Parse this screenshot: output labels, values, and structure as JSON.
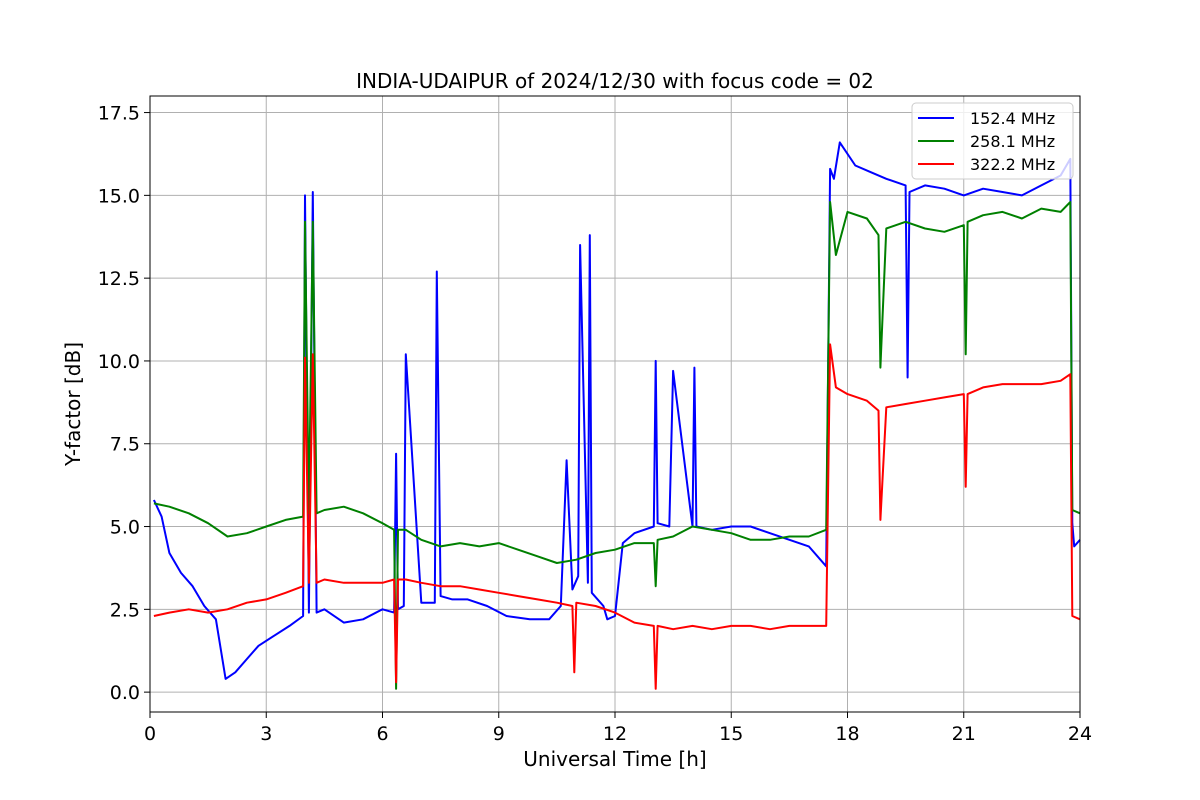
{
  "chart_data": {
    "type": "line",
    "title": "INDIA-UDAIPUR of 2024/12/30 with focus code = 02",
    "xlabel": "Universal Time [h]",
    "ylabel": "Y-factor [dB]",
    "xlim": [
      0,
      24
    ],
    "ylim": [
      -0.6,
      18.0
    ],
    "xticks": [
      0,
      3,
      6,
      9,
      12,
      15,
      18,
      21,
      24
    ],
    "xtick_labels": [
      "0",
      "3",
      "6",
      "9",
      "12",
      "15",
      "18",
      "21",
      "24"
    ],
    "yticks": [
      0.0,
      2.5,
      5.0,
      7.5,
      10.0,
      12.5,
      15.0,
      17.5
    ],
    "ytick_labels": [
      "0.0",
      "2.5",
      "5.0",
      "7.5",
      "10.0",
      "12.5",
      "15.0",
      "17.5"
    ],
    "grid": true,
    "legend_position": "top-right",
    "series": [
      {
        "name": "152.4 MHz",
        "color": "#0000ff",
        "x": [
          0.1,
          0.3,
          0.5,
          0.8,
          1.1,
          1.4,
          1.7,
          1.95,
          2.2,
          2.5,
          2.8,
          3.2,
          3.6,
          3.95,
          4.0,
          4.1,
          4.2,
          4.3,
          4.5,
          5.0,
          5.5,
          6.0,
          6.3,
          6.35,
          6.4,
          6.55,
          6.6,
          7.0,
          7.35,
          7.4,
          7.5,
          7.8,
          8.2,
          8.7,
          9.2,
          9.8,
          10.3,
          10.6,
          10.75,
          10.9,
          11.05,
          11.1,
          11.3,
          11.35,
          11.4,
          11.7,
          11.8,
          12.0,
          12.2,
          12.5,
          13.0,
          13.05,
          13.1,
          13.4,
          13.5,
          14.0,
          14.05,
          14.1,
          14.5,
          15.0,
          15.5,
          16.0,
          16.5,
          17.0,
          17.45,
          17.55,
          17.65,
          17.8,
          18.2,
          18.6,
          19.0,
          19.5,
          19.55,
          19.6,
          20.0,
          20.5,
          21.0,
          21.5,
          22.0,
          22.5,
          23.0,
          23.5,
          23.75,
          23.8,
          23.85,
          24.0
        ],
        "y": [
          5.8,
          5.3,
          4.2,
          3.6,
          3.2,
          2.6,
          2.2,
          0.4,
          0.6,
          1.0,
          1.4,
          1.7,
          2.0,
          2.3,
          15.0,
          2.4,
          15.1,
          2.4,
          2.5,
          2.1,
          2.2,
          2.5,
          2.4,
          7.2,
          2.5,
          2.6,
          10.2,
          2.7,
          2.7,
          12.7,
          2.9,
          2.8,
          2.8,
          2.6,
          2.3,
          2.2,
          2.2,
          2.6,
          7.0,
          3.1,
          3.5,
          13.5,
          3.3,
          13.8,
          3.0,
          2.6,
          2.2,
          2.3,
          4.5,
          4.8,
          5.0,
          10.0,
          5.1,
          5.0,
          9.7,
          5.0,
          9.8,
          5.0,
          4.9,
          5.0,
          5.0,
          4.8,
          4.6,
          4.4,
          3.8,
          15.8,
          15.5,
          16.6,
          15.9,
          15.7,
          15.5,
          15.3,
          9.5,
          15.1,
          15.3,
          15.2,
          15.0,
          15.2,
          15.1,
          15.0,
          15.3,
          15.6,
          16.1,
          5.1,
          4.4,
          4.6
        ]
      },
      {
        "name": "258.1 MHz",
        "color": "#008000",
        "x": [
          0.1,
          0.5,
          1.0,
          1.5,
          2.0,
          2.5,
          3.0,
          3.5,
          3.95,
          4.0,
          4.1,
          4.2,
          4.3,
          4.5,
          5.0,
          5.5,
          6.0,
          6.3,
          6.35,
          6.4,
          6.6,
          7.0,
          7.5,
          8.0,
          8.5,
          9.0,
          9.5,
          10.0,
          10.5,
          11.0,
          11.5,
          12.0,
          12.5,
          13.0,
          13.05,
          13.1,
          13.5,
          14.0,
          14.5,
          15.0,
          15.5,
          16.0,
          16.5,
          17.0,
          17.45,
          17.55,
          17.7,
          18.0,
          18.5,
          18.8,
          18.85,
          19.0,
          19.5,
          20.0,
          20.5,
          21.0,
          21.05,
          21.1,
          21.5,
          22.0,
          22.5,
          23.0,
          23.5,
          23.75,
          23.8,
          24.0
        ],
        "y": [
          5.7,
          5.6,
          5.4,
          5.1,
          4.7,
          4.8,
          5.0,
          5.2,
          5.3,
          14.2,
          5.4,
          14.2,
          5.4,
          5.5,
          5.6,
          5.4,
          5.1,
          4.9,
          0.1,
          4.9,
          4.9,
          4.6,
          4.4,
          4.5,
          4.4,
          4.5,
          4.3,
          4.1,
          3.9,
          4.0,
          4.2,
          4.3,
          4.5,
          4.5,
          3.2,
          4.6,
          4.7,
          5.0,
          4.9,
          4.8,
          4.6,
          4.6,
          4.7,
          4.7,
          4.9,
          14.8,
          13.2,
          14.5,
          14.3,
          13.8,
          9.8,
          14.0,
          14.2,
          14.0,
          13.9,
          14.1,
          10.2,
          14.2,
          14.4,
          14.5,
          14.3,
          14.6,
          14.5,
          14.8,
          5.5,
          5.4
        ]
      },
      {
        "name": "322.2 MHz",
        "color": "#ff0000",
        "x": [
          0.1,
          0.5,
          1.0,
          1.5,
          2.0,
          2.5,
          3.0,
          3.5,
          3.95,
          4.0,
          4.1,
          4.2,
          4.3,
          4.5,
          5.0,
          5.5,
          6.0,
          6.3,
          6.35,
          6.4,
          6.6,
          7.0,
          7.5,
          8.0,
          8.5,
          9.0,
          9.5,
          10.0,
          10.5,
          10.9,
          10.95,
          11.0,
          11.5,
          12.0,
          12.5,
          13.0,
          13.05,
          13.1,
          13.5,
          14.0,
          14.5,
          15.0,
          15.5,
          16.0,
          16.5,
          17.0,
          17.45,
          17.55,
          17.7,
          18.0,
          18.5,
          18.8,
          18.85,
          19.0,
          19.5,
          20.0,
          20.5,
          21.0,
          21.05,
          21.1,
          21.5,
          22.0,
          22.5,
          23.0,
          23.5,
          23.75,
          23.8,
          24.0
        ],
        "y": [
          2.3,
          2.4,
          2.5,
          2.4,
          2.5,
          2.7,
          2.8,
          3.0,
          3.2,
          10.1,
          3.3,
          10.2,
          3.3,
          3.4,
          3.3,
          3.3,
          3.3,
          3.4,
          0.3,
          3.4,
          3.4,
          3.3,
          3.2,
          3.2,
          3.1,
          3.0,
          2.9,
          2.8,
          2.7,
          2.6,
          0.6,
          2.7,
          2.6,
          2.4,
          2.1,
          2.0,
          0.1,
          2.0,
          1.9,
          2.0,
          1.9,
          2.0,
          2.0,
          1.9,
          2.0,
          2.0,
          2.0,
          10.5,
          9.2,
          9.0,
          8.8,
          8.5,
          5.2,
          8.6,
          8.7,
          8.8,
          8.9,
          9.0,
          6.2,
          9.0,
          9.2,
          9.3,
          9.3,
          9.3,
          9.4,
          9.6,
          2.3,
          2.2
        ]
      }
    ]
  }
}
